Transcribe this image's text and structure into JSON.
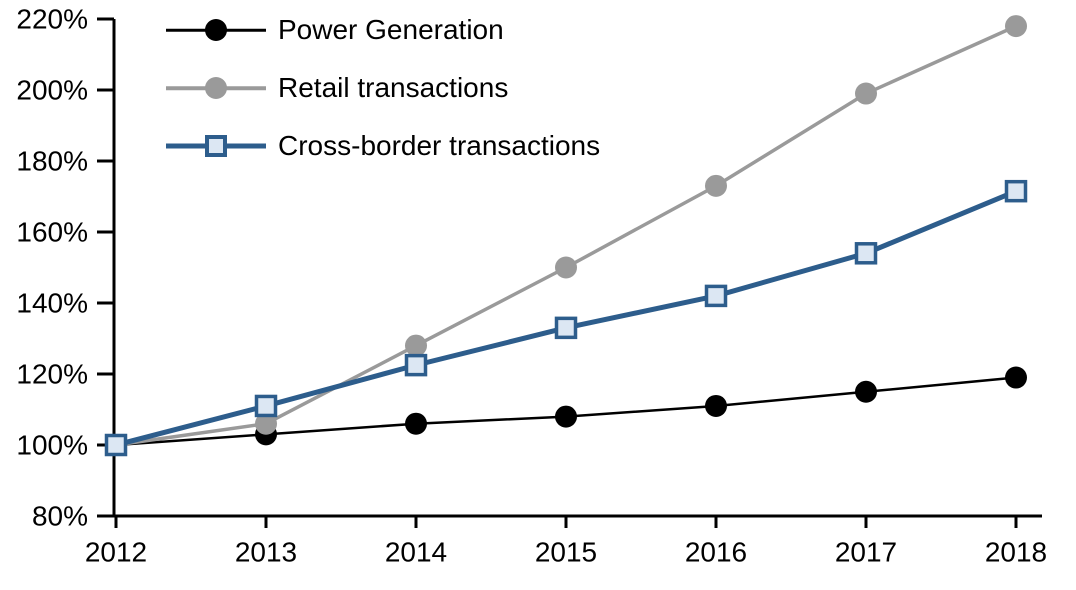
{
  "chart_data": {
    "type": "line",
    "title": "",
    "xlabel": "",
    "ylabel": "",
    "x_labels": [
      "2012",
      "2013",
      "2014",
      "2015",
      "2016",
      "2017",
      "2018"
    ],
    "y_tick_labels": [
      "80%",
      "100%",
      "120%",
      "140%",
      "160%",
      "180%",
      "200%",
      "220%"
    ],
    "ylim": [
      80,
      220
    ],
    "ytick_step": 20,
    "grid": false,
    "legend_position": "top-left-inside",
    "series": [
      {
        "name": "Power Generation",
        "marker": "circle",
        "color": "#000000",
        "marker_fill": "#000000",
        "values": [
          100,
          103,
          106,
          108,
          111,
          115,
          119
        ]
      },
      {
        "name": "Retail transactions",
        "marker": "circle",
        "color": "#9a9a9a",
        "marker_fill": "#9a9a9a",
        "values": [
          100,
          106,
          128,
          150,
          173,
          199,
          218
        ]
      },
      {
        "name": "Cross-border transactions",
        "marker": "square",
        "color": "#2d5d8c",
        "marker_fill": "#dce7f3",
        "values": [
          100,
          111,
          122.5,
          133,
          142,
          154,
          171.5
        ]
      }
    ]
  }
}
